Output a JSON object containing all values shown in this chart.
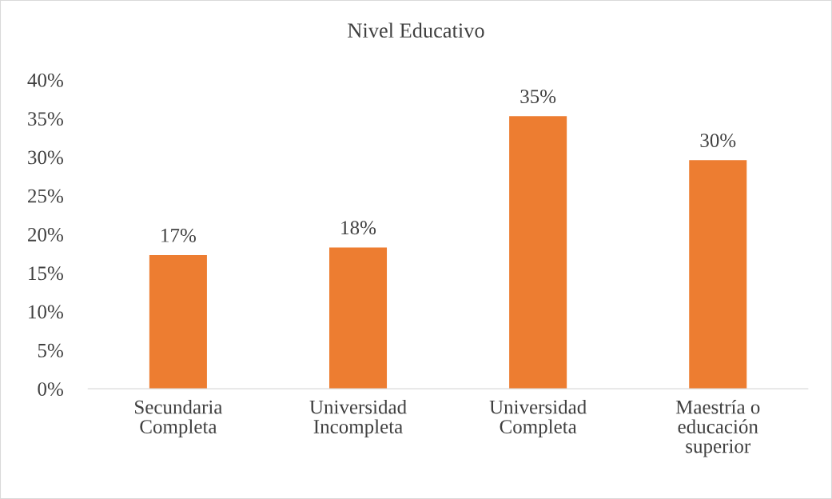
{
  "chart_data": {
    "type": "bar",
    "title": "Nivel Educativo",
    "categories": [
      "Secundaria Completa",
      "Universidad Incompleta",
      "Universidad Completa",
      "Maestría o educación superior"
    ],
    "values": [
      17.3,
      18.3,
      35.3,
      29.6
    ],
    "value_labels": [
      "17%",
      "18%",
      "35%",
      "30%"
    ],
    "color": "#ed7d31",
    "ylim": [
      0,
      40
    ],
    "yticks": [
      {
        "value": 0,
        "label": "0%"
      },
      {
        "value": 5,
        "label": "5%"
      },
      {
        "value": 10,
        "label": "10%"
      },
      {
        "value": 15,
        "label": "15%"
      },
      {
        "value": 20,
        "label": "20%"
      },
      {
        "value": 25,
        "label": "25%"
      },
      {
        "value": 30,
        "label": "30%"
      },
      {
        "value": 35,
        "label": "35%"
      },
      {
        "value": 40,
        "label": "40%"
      }
    ],
    "grid": false,
    "legend": false
  }
}
